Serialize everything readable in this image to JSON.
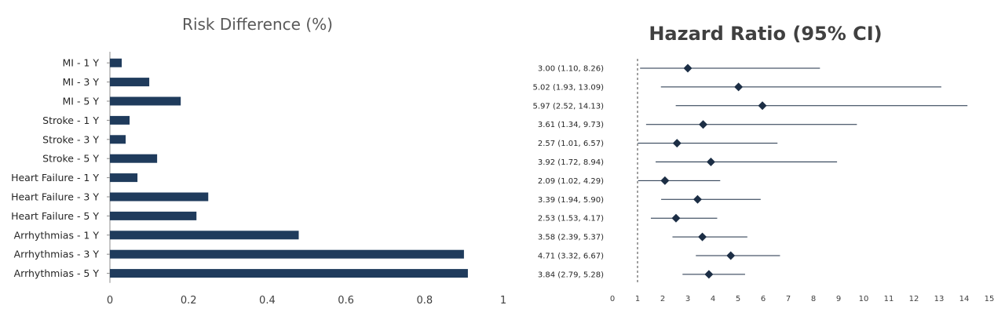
{
  "chart_data": [
    {
      "type": "bar",
      "orientation": "horizontal",
      "title": "Risk  Difference (%)",
      "categories": [
        "MI - 1 Y",
        "MI - 3 Y",
        "MI - 5 Y",
        "Stroke - 1 Y",
        "Stroke - 3 Y",
        "Stroke - 5 Y",
        "Heart Failure - 1 Y",
        "Heart Failure - 3 Y",
        "Heart Failure - 5 Y",
        "Arrhythmias - 1 Y",
        "Arrhythmias - 3 Y",
        "Arrhythmias - 5 Y"
      ],
      "values": [
        0.03,
        0.1,
        0.18,
        0.05,
        0.04,
        0.12,
        0.07,
        0.25,
        0.22,
        0.48,
        0.9,
        0.91
      ],
      "xlim": [
        0,
        1
      ],
      "xticks": [
        "0",
        "0.2",
        "0.4",
        "0.6",
        "0.8",
        "1"
      ],
      "bar_color": "#1f3b5c",
      "grid": false
    },
    {
      "type": "forest",
      "title": "Hazard Ratio (95% CI)",
      "labels": [
        "3.00 (1.10, 8.26)",
        "5.02 (1.93, 13.09)",
        "5.97 (2.52, 14.13)",
        "3.61 (1.34, 9.73)",
        "2.57 (1.01, 6.57)",
        "3.92 (1.72, 8.94)",
        "2.09 (1.02, 4.29)",
        "3.39 (1.94, 5.90)",
        "2.53 (1.53, 4.17)",
        "3.58 (2.39, 5.37)",
        "4.71 (3.32, 6.67)",
        "3.84 (2.79, 5.28)"
      ],
      "estimates": [
        3.0,
        5.02,
        5.97,
        3.61,
        2.57,
        3.92,
        2.09,
        3.39,
        2.53,
        3.58,
        4.71,
        3.84
      ],
      "lower": [
        1.1,
        1.93,
        2.52,
        1.34,
        1.01,
        1.72,
        1.02,
        1.94,
        1.53,
        2.39,
        3.32,
        2.79
      ],
      "upper": [
        8.26,
        13.09,
        14.13,
        9.73,
        6.57,
        8.94,
        4.29,
        5.9,
        4.17,
        5.37,
        6.67,
        5.28
      ],
      "reference_line": 1,
      "xlim": [
        0,
        15
      ],
      "xticks": [
        "0",
        "1",
        "2",
        "3",
        "4",
        "5",
        "6",
        "7",
        "8",
        "9",
        "10",
        "11",
        "12",
        "13",
        "14",
        "15"
      ],
      "marker_color": "#1c2e45",
      "grid": false
    }
  ]
}
